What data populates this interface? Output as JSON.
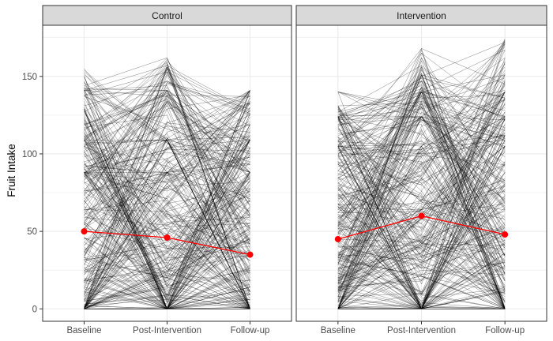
{
  "chart_data": {
    "type": "line",
    "ylabel": "Fruit Intake",
    "xlabel": "",
    "categories": [
      "Baseline",
      "Post-Intervention",
      "Follow-up"
    ],
    "ylim": [
      -8,
      183
    ],
    "yticks": [
      0,
      50,
      100,
      150
    ],
    "grid": true,
    "colors": {
      "individual": "#000000",
      "mean": "#ff0000",
      "strip": "#d9d9d9",
      "grid": "#ebebeb",
      "panel_border": "#333333"
    },
    "facets": [
      {
        "label": "Control",
        "mean": [
          50,
          46,
          35
        ],
        "individuals": {
          "count": 320,
          "baseline_max": 156,
          "post_max": 162,
          "followup_max": 140,
          "spikes": [
            88,
            109,
            141
          ],
          "seed": 11
        }
      },
      {
        "label": "Intervention",
        "mean": [
          45,
          60,
          48
        ],
        "individuals": {
          "count": 320,
          "baseline_max": 132,
          "post_max": 168,
          "followup_max": 175,
          "spikes": [
            105,
            124,
            140
          ],
          "seed": 29
        }
      }
    ]
  }
}
